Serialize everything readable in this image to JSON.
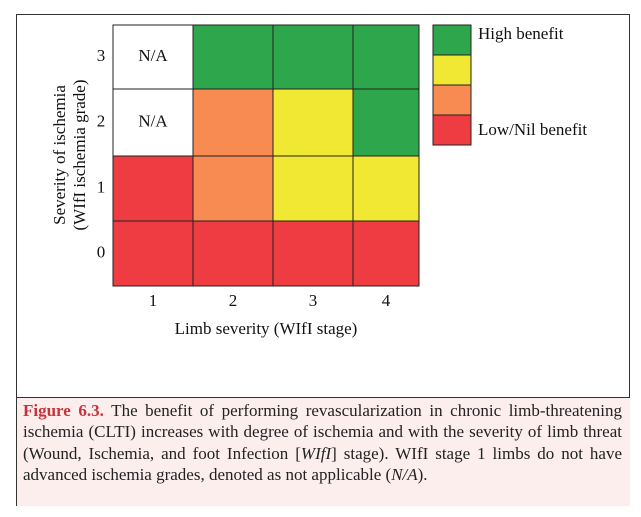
{
  "figure": {
    "y_axis_title": [
      "Severity of ischemia",
      "(WIfI ischemia grade)"
    ],
    "x_axis_title": "Limb severity (WIfI stage)",
    "row_labels": [
      "3",
      "2",
      "1",
      "0"
    ],
    "column_labels": [
      "1",
      "2",
      "3",
      "4"
    ],
    "cells": [
      [
        {
          "color": "#ffffff",
          "text": "N/A"
        },
        {
          "color": "#2ea64b"
        },
        {
          "color": "#2ea64b"
        },
        {
          "color": "#2ea64b"
        }
      ],
      [
        {
          "color": "#ffffff",
          "text": "N/A"
        },
        {
          "color": "#f78b52"
        },
        {
          "color": "#f1e834"
        },
        {
          "color": "#2ea64b"
        }
      ],
      [
        {
          "color": "#ee3c42"
        },
        {
          "color": "#f78b52"
        },
        {
          "color": "#f1e834"
        },
        {
          "color": "#f1e834"
        }
      ],
      [
        {
          "color": "#ee3c42"
        },
        {
          "color": "#ee3c42"
        },
        {
          "color": "#ee3c42"
        },
        {
          "color": "#ee3c42"
        }
      ]
    ],
    "legend": [
      {
        "color": "#2ea64b",
        "text": "High benefit"
      },
      {
        "color": "#f1e834"
      },
      {
        "color": "#f78b52"
      },
      {
        "color": "#ee3c42",
        "text": "Low/Nil benefit"
      }
    ]
  },
  "caption": {
    "label": "Figure 6.3.",
    "segments": [
      {
        "text": " The benefit of performing revascularization in chronic limb-threatening ischemia (CLTI) increases with degree of ischemia and with the severity of limb threat (Wound, Ischemia, and foot Infection [",
        "style": "normal"
      },
      {
        "text": "WIfI",
        "style": "italic"
      },
      {
        "text": "] stage). WIfI stage 1 limbs do not have advanced ischemia grades, denoted as not applicable (",
        "style": "normal"
      },
      {
        "text": "N/A",
        "style": "italic"
      },
      {
        "text": ").",
        "style": "normal"
      }
    ]
  }
}
